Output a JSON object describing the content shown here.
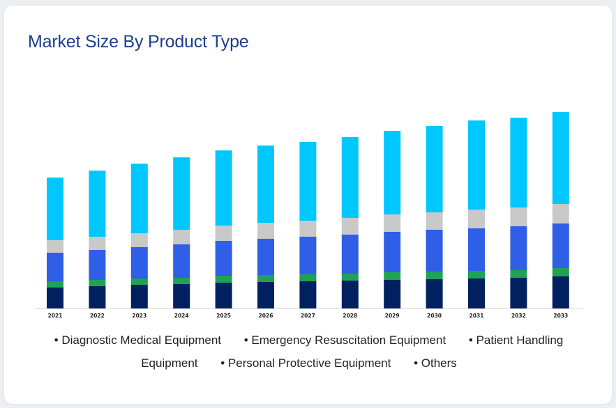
{
  "title": "Market Size By Product Type",
  "chart_data": {
    "type": "bar",
    "stacked": true,
    "title": "Market Size By Product Type",
    "xlabel": "",
    "ylabel": "",
    "axis_visible": false,
    "grid": false,
    "legend_position": "bottom",
    "categories": [
      "2021",
      "2022",
      "2023",
      "2024",
      "2025",
      "2026",
      "2027",
      "2028",
      "2029",
      "2030",
      "2031",
      "2032",
      "2033"
    ],
    "series": [
      {
        "name": "Diagnostic Medical Equipment",
        "color": "#002060",
        "values": [
          30,
          32,
          34,
          35,
          37,
          38,
          39,
          40,
          41,
          42,
          43,
          44,
          46
        ]
      },
      {
        "name": "Emergency Resuscitation Equipment",
        "color": "#1ea355",
        "values": [
          9,
          9,
          9,
          9,
          10,
          10,
          10,
          10,
          11,
          11,
          11,
          11,
          12
        ]
      },
      {
        "name": "Patient Handling Equipment",
        "color": "#2f5fe6",
        "values": [
          41,
          43,
          45,
          48,
          50,
          52,
          54,
          56,
          58,
          60,
          61,
          63,
          64
        ]
      },
      {
        "name": "Personal Protective Equipment",
        "color": "#c9c9c9",
        "values": [
          18,
          19,
          20,
          21,
          22,
          23,
          23,
          24,
          25,
          25,
          27,
          27,
          28
        ]
      },
      {
        "name": "Others",
        "color": "#00c8ff",
        "values": [
          90,
          95,
          100,
          104,
          108,
          111,
          113,
          116,
          120,
          124,
          128,
          129,
          132
        ]
      }
    ],
    "ylim": [
      0,
      285
    ]
  },
  "legend": {
    "items": [
      "Diagnostic Medical Equipment",
      "Emergency Resuscitation Equipment",
      "Patient Handling Equipment",
      "Personal Protective Equipment",
      "Others"
    ]
  }
}
